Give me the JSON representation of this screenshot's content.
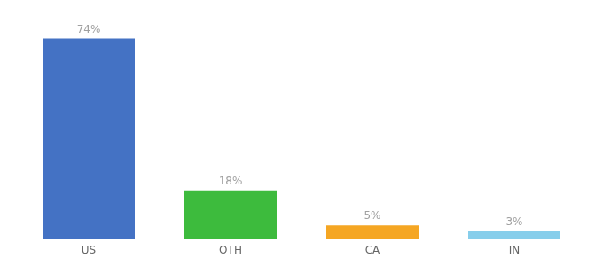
{
  "chart_data": {
    "type": "bar",
    "categories": [
      "US",
      "OTH",
      "CA",
      "IN"
    ],
    "values": [
      74,
      18,
      5,
      3
    ],
    "value_labels": [
      "74%",
      "18%",
      "5%",
      "3%"
    ],
    "colors": [
      "#4472c4",
      "#3dbb3d",
      "#f5a623",
      "#87ceeb"
    ],
    "ylim": [
      0,
      85
    ],
    "grid": false,
    "data_labels": true,
    "tick_labels": "x"
  }
}
